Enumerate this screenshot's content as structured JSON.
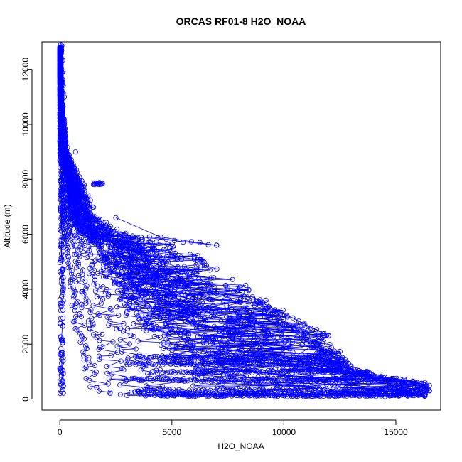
{
  "chart_data": {
    "type": "scatter",
    "title": "ORCAS RF01-8 H2O_NOAA",
    "xlabel": "H2O_NOAA",
    "ylabel": "Altitude (m)",
    "xlim": [
      -800,
      17000
    ],
    "ylim": [
      -400,
      13000
    ],
    "x_ticks": [
      0,
      5000,
      10000,
      15000
    ],
    "y_ticks": [
      0,
      2000,
      4000,
      6000,
      8000,
      10000,
      12000
    ],
    "marker": "open-circle",
    "connected": true,
    "color": "#0000ff",
    "envelope": [
      {
        "x": 40,
        "y": 12900
      },
      {
        "x": 200,
        "y": 11000
      },
      {
        "x": 700,
        "y": 9000
      },
      {
        "x": 1900,
        "y": 7850
      },
      {
        "x": 2500,
        "y": 6600
      },
      {
        "x": 4500,
        "y": 5900
      },
      {
        "x": 7000,
        "y": 5600
      },
      {
        "x": 9200,
        "y": 3600
      },
      {
        "x": 12000,
        "y": 2300
      },
      {
        "x": 13000,
        "y": 1200
      },
      {
        "x": 14500,
        "y": 800
      },
      {
        "x": 16300,
        "y": 600
      },
      {
        "x": 16500,
        "y": 300
      },
      {
        "x": 16300,
        "y": 150
      }
    ],
    "features": [
      {
        "x": [
          1500,
          1900
        ],
        "y": [
          7850,
          7850
        ]
      },
      {
        "x": [
          2500,
          7000
        ],
        "y": [
          6000,
          5600
        ]
      },
      {
        "x": [
          8800,
          12000
        ],
        "y": [
          3600,
          2300
        ]
      },
      {
        "x": [
          10000,
          16500
        ],
        "y": [
          1300,
          500
        ]
      },
      {
        "x": [
          3000,
          13000
        ],
        "y": [
          150,
          150
        ]
      }
    ]
  }
}
